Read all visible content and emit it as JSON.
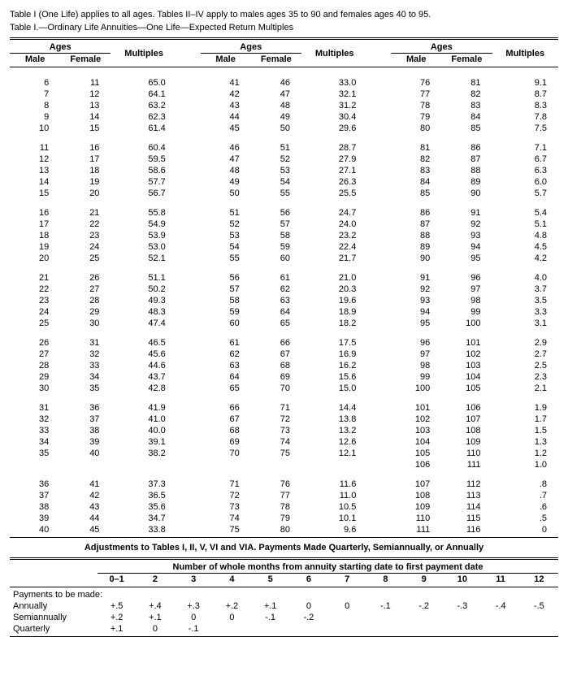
{
  "note": "Table I (One Life) applies to all ages. Tables II–IV apply to males ages 35 to 90 and females ages 40 to 95.",
  "caption": "Table I.—Ordinary Life Annuities—One Life—Expected Return Multiples",
  "headers": {
    "ages": "Ages",
    "male": "Male",
    "female": "Female",
    "multiples": "Multiples"
  },
  "groups": [
    [
      [
        6,
        11,
        65.0
      ],
      [
        7,
        12,
        64.1
      ],
      [
        8,
        13,
        63.2
      ],
      [
        9,
        14,
        62.3
      ],
      [
        10,
        15,
        61.4
      ]
    ],
    [
      [
        11,
        16,
        60.4
      ],
      [
        12,
        17,
        59.5
      ],
      [
        13,
        18,
        58.6
      ],
      [
        14,
        19,
        57.7
      ],
      [
        15,
        20,
        56.7
      ]
    ],
    [
      [
        16,
        21,
        55.8
      ],
      [
        17,
        22,
        54.9
      ],
      [
        18,
        23,
        53.9
      ],
      [
        19,
        24,
        53.0
      ],
      [
        20,
        25,
        52.1
      ]
    ],
    [
      [
        21,
        26,
        51.1
      ],
      [
        22,
        27,
        50.2
      ],
      [
        23,
        28,
        49.3
      ],
      [
        24,
        29,
        48.3
      ],
      [
        25,
        30,
        47.4
      ]
    ],
    [
      [
        26,
        31,
        46.5
      ],
      [
        27,
        32,
        45.6
      ],
      [
        28,
        33,
        44.6
      ],
      [
        29,
        34,
        43.7
      ],
      [
        30,
        35,
        42.8
      ]
    ],
    [
      [
        31,
        36,
        41.9
      ],
      [
        32,
        37,
        41.0
      ],
      [
        33,
        38,
        40.0
      ],
      [
        34,
        39,
        39.1
      ],
      [
        35,
        40,
        38.2
      ]
    ],
    [
      [
        36,
        41,
        37.3
      ],
      [
        37,
        42,
        36.5
      ],
      [
        38,
        43,
        35.6
      ],
      [
        39,
        44,
        34.7
      ],
      [
        40,
        45,
        33.8
      ]
    ]
  ],
  "groups2": [
    [
      [
        41,
        46,
        33.0
      ],
      [
        42,
        47,
        32.1
      ],
      [
        43,
        48,
        31.2
      ],
      [
        44,
        49,
        30.4
      ],
      [
        45,
        50,
        29.6
      ]
    ],
    [
      [
        46,
        51,
        28.7
      ],
      [
        47,
        52,
        27.9
      ],
      [
        48,
        53,
        27.1
      ],
      [
        49,
        54,
        26.3
      ],
      [
        50,
        55,
        25.5
      ]
    ],
    [
      [
        51,
        56,
        24.7
      ],
      [
        52,
        57,
        24.0
      ],
      [
        53,
        58,
        23.2
      ],
      [
        54,
        59,
        22.4
      ],
      [
        55,
        60,
        21.7
      ]
    ],
    [
      [
        56,
        61,
        21.0
      ],
      [
        57,
        62,
        20.3
      ],
      [
        58,
        63,
        19.6
      ],
      [
        59,
        64,
        18.9
      ],
      [
        60,
        65,
        18.2
      ]
    ],
    [
      [
        61,
        66,
        17.5
      ],
      [
        62,
        67,
        16.9
      ],
      [
        63,
        68,
        16.2
      ],
      [
        64,
        69,
        15.6
      ],
      [
        65,
        70,
        15.0
      ]
    ],
    [
      [
        66,
        71,
        14.4
      ],
      [
        67,
        72,
        13.8
      ],
      [
        68,
        73,
        13.2
      ],
      [
        69,
        74,
        12.6
      ],
      [
        70,
        75,
        12.1
      ]
    ],
    [
      [
        71,
        76,
        11.6
      ],
      [
        72,
        77,
        11.0
      ],
      [
        73,
        78,
        10.5
      ],
      [
        74,
        79,
        10.1
      ],
      [
        75,
        80,
        9.6
      ]
    ]
  ],
  "groups3": [
    [
      [
        76,
        81,
        9.1
      ],
      [
        77,
        82,
        8.7
      ],
      [
        78,
        83,
        8.3
      ],
      [
        79,
        84,
        7.8
      ],
      [
        80,
        85,
        7.5
      ]
    ],
    [
      [
        81,
        86,
        7.1
      ],
      [
        82,
        87,
        6.7
      ],
      [
        83,
        88,
        6.3
      ],
      [
        84,
        89,
        6.0
      ],
      [
        85,
        90,
        5.7
      ]
    ],
    [
      [
        86,
        91,
        5.4
      ],
      [
        87,
        92,
        5.1
      ],
      [
        88,
        93,
        4.8
      ],
      [
        89,
        94,
        4.5
      ],
      [
        90,
        95,
        4.2
      ]
    ],
    [
      [
        91,
        96,
        4.0
      ],
      [
        92,
        97,
        3.7
      ],
      [
        93,
        98,
        3.5
      ],
      [
        94,
        99,
        3.3
      ],
      [
        95,
        100,
        3.1
      ]
    ],
    [
      [
        96,
        101,
        2.9
      ],
      [
        97,
        102,
        2.7
      ],
      [
        98,
        103,
        2.5
      ],
      [
        99,
        104,
        2.3
      ],
      [
        100,
        105,
        2.1
      ]
    ],
    [
      [
        101,
        106,
        1.9
      ],
      [
        102,
        107,
        1.7
      ],
      [
        103,
        108,
        1.5
      ],
      [
        104,
        109,
        1.3
      ],
      [
        105,
        110,
        1.2
      ],
      [
        106,
        111,
        1.0
      ]
    ],
    [
      [
        107,
        112,
        ".8"
      ],
      [
        108,
        113,
        ".7"
      ],
      [
        109,
        114,
        ".6"
      ],
      [
        110,
        115,
        ".5"
      ],
      [
        111,
        116,
        "0"
      ]
    ]
  ],
  "adj": {
    "title": "Adjustments to Tables I, II, V, VI and VIA. Payments Made Quarterly, Semiannually, or Annually",
    "subtitle": "Number of whole months from annuity starting date to first payment date",
    "cols": [
      "0–1",
      "2",
      "3",
      "4",
      "5",
      "6",
      "7",
      "8",
      "9",
      "10",
      "11",
      "12"
    ],
    "rows_label": "Payments to be made:",
    "rows": [
      {
        "label": "  Annually",
        "v": [
          "+.5",
          "+.4",
          "+.3",
          "+.2",
          "+.1",
          "0",
          "0",
          "-.1",
          "-.2",
          "-.3",
          "-.4",
          "-.5"
        ]
      },
      {
        "label": "  Semiannually",
        "v": [
          "+.2",
          "+.1",
          "0",
          "0",
          "-.1",
          "-.2",
          "",
          "",
          "",
          "",
          "",
          ""
        ]
      },
      {
        "label": "  Quarterly",
        "v": [
          "+.1",
          "0",
          "-.1",
          "",
          "",
          "",
          "",
          "",
          "",
          "",
          "",
          ""
        ]
      }
    ]
  }
}
